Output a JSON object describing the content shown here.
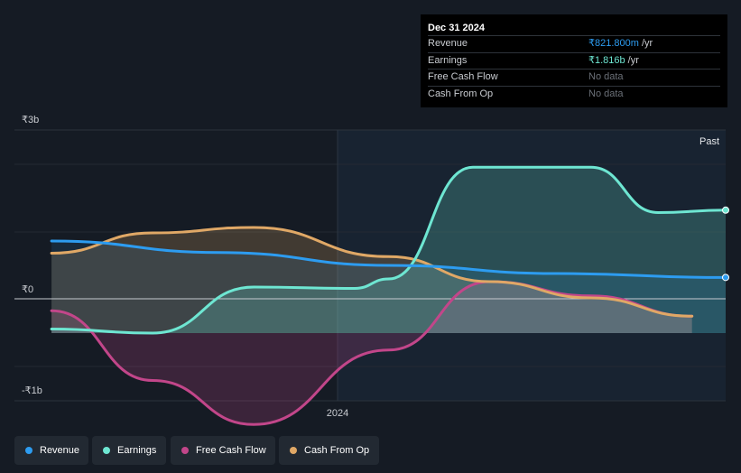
{
  "tooltip": {
    "date": "Dec 31 2024",
    "rows": [
      {
        "label": "Revenue",
        "value": "₹821.800m",
        "unit": "/yr"
      },
      {
        "label": "Earnings",
        "value": "₹1.816b",
        "unit": "/yr"
      },
      {
        "label": "Free Cash Flow",
        "value": "No data"
      },
      {
        "label": "Cash From Op",
        "value": "No data"
      }
    ]
  },
  "colors": {
    "revenue": "#2d9cf0",
    "earnings": "#6ee6d2",
    "free_cash_flow": "#c2468a",
    "cash_from_op": "#e0a866",
    "background": "#151b24"
  },
  "legend": [
    {
      "label": "Revenue",
      "color": "#2d9cf0"
    },
    {
      "label": "Earnings",
      "color": "#6ee6d2"
    },
    {
      "label": "Free Cash Flow",
      "color": "#c2468a"
    },
    {
      "label": "Cash From Op",
      "color": "#e0a866"
    }
  ],
  "chart_data": {
    "type": "area",
    "title": "",
    "xlabel": "",
    "ylabel": "",
    "x_tick_labels": [
      {
        "x": 2024.0,
        "label": "2024"
      }
    ],
    "y_tick_labels": [
      {
        "y": 3000,
        "label": "₹3b"
      },
      {
        "y": 0,
        "label": "₹0"
      },
      {
        "y": -1000,
        "label": "-₹1b"
      }
    ],
    "xlim": [
      2022.89,
      2025.0
    ],
    "ylim": [
      -1000,
      3000
    ],
    "past_label": "Past",
    "past_start": 2024.0,
    "unit": "₹ millions",
    "series": [
      {
        "name": "Revenue",
        "color": "#2d9cf0",
        "x": [
          2023.0,
          2023.5,
          2024.0,
          2024.5,
          2025.0
        ],
        "values": [
          1360,
          1190,
          1000,
          880,
          822
        ]
      },
      {
        "name": "Earnings",
        "color": "#6ee6d2",
        "x": [
          2023.0,
          2023.3,
          2023.6,
          2023.9,
          2024.0,
          2024.25,
          2024.6,
          2024.8,
          2025.0
        ],
        "values": [
          60,
          0,
          680,
          660,
          800,
          2450,
          2450,
          1780,
          1816
        ]
      },
      {
        "name": "Free Cash Flow",
        "color": "#c2468a",
        "x": [
          2023.0,
          2023.3,
          2023.6,
          2024.0,
          2024.3,
          2024.6,
          2024.9
        ],
        "values": [
          330,
          -700,
          -1350,
          -250,
          760,
          550,
          250
        ]
      },
      {
        "name": "Cash From Op",
        "color": "#e0a866",
        "x": [
          2023.0,
          2023.3,
          2023.6,
          2024.0,
          2024.3,
          2024.6,
          2024.9
        ],
        "values": [
          1180,
          1480,
          1560,
          1130,
          760,
          520,
          250
        ]
      }
    ]
  }
}
